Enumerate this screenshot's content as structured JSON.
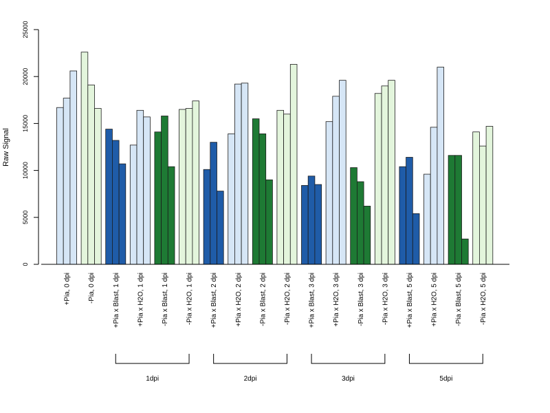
{
  "chart_data": {
    "type": "bar",
    "ylabel": "Raw Signal",
    "ylim": [
      0,
      25000
    ],
    "yticks": [
      0,
      5000,
      10000,
      15000,
      20000,
      25000
    ],
    "grid": false,
    "legend": "none",
    "categories": [
      "+Pia, 0 dpi",
      "-Pia, 0 dpi",
      "+Pia x Blast, 1 dpi",
      "+Pia x H2O, 1 dpi",
      "-Pia x Blast, 1 dpi",
      "-Pia x H2O, 1 dpi",
      "+Pia x Blast, 2 dpi",
      "+Pia x H2O, 2 dpi",
      "-Pia x Blast, 2 dpi",
      "-Pia x H2O, 2 dpi",
      "+Pia x Blast, 3 dpi",
      "+Pia x H2O, 3 dpi",
      "-Pia x Blast, 3 dpi",
      "-Pia x H2O, 3 dpi",
      "+Pia x Blast, 5 dpi",
      "+Pia x H2O, 5 dpi",
      "-Pia x Blast, 5 dpi",
      "-Pia x H2O, 5 dpi"
    ],
    "category_colors": [
      "#d6e6f6",
      "#e3f5dc",
      "#1f5ca8",
      "#d6e6f6",
      "#1e7a34",
      "#e3f5dc",
      "#1f5ca8",
      "#d6e6f6",
      "#1e7a34",
      "#e3f5dc",
      "#1f5ca8",
      "#d6e6f6",
      "#1e7a34",
      "#e3f5dc",
      "#1f5ca8",
      "#d6e6f6",
      "#1e7a34",
      "#e3f5dc"
    ],
    "series": [
      {
        "values": [
          16700,
          22600,
          14400,
          12700,
          14100,
          16500,
          10100,
          13900,
          15500,
          16400,
          8400,
          15200,
          10300,
          18200,
          10400,
          9600,
          11600,
          14100
        ]
      },
      {
        "values": [
          17700,
          19100,
          13200,
          16400,
          15800,
          16600,
          13000,
          19200,
          13900,
          16000,
          9400,
          17900,
          8800,
          19000,
          11400,
          14600,
          11600,
          12600
        ]
      },
      {
        "values": [
          20600,
          16600,
          10700,
          15700,
          10400,
          17400,
          7800,
          19300,
          9000,
          21300,
          8500,
          19600,
          6200,
          19600,
          5400,
          21000,
          2700,
          14700
        ]
      }
    ],
    "groups": [
      {
        "label": "1dpi",
        "from": 2,
        "to": 5
      },
      {
        "label": "2dpi",
        "from": 6,
        "to": 9
      },
      {
        "label": "3dpi",
        "from": 10,
        "to": 13
      },
      {
        "label": "5dpi",
        "from": 14,
        "to": 17
      }
    ]
  }
}
